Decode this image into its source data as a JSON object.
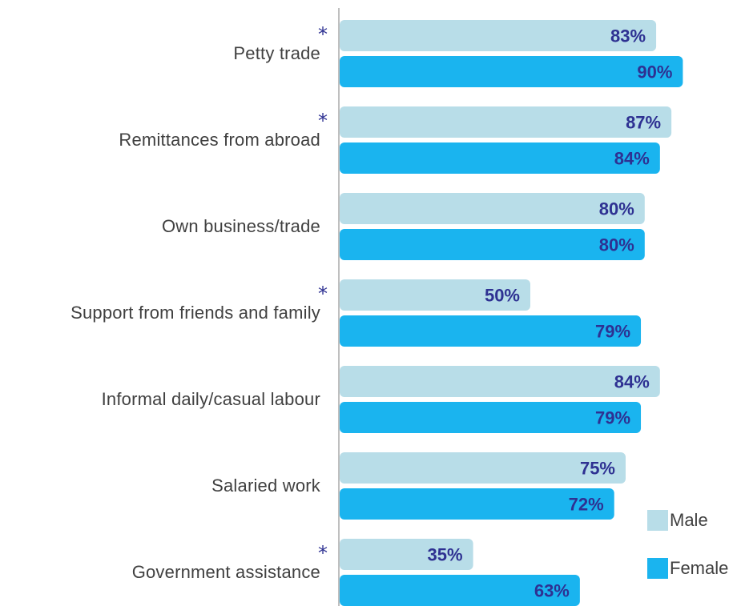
{
  "chart_data": {
    "type": "bar",
    "orientation": "horizontal",
    "categories": [
      "Petty trade",
      "Remittances from abroad",
      "Own business/trade",
      "Support from friends and family",
      "Informal daily/casual labour",
      "Salaried work",
      "Government assistance"
    ],
    "significant": [
      true,
      true,
      false,
      true,
      false,
      false,
      true
    ],
    "significance_marker": "*",
    "series": [
      {
        "name": "Male",
        "values": [
          83,
          87,
          80,
          50,
          84,
          75,
          35
        ],
        "color": "#b8dde8"
      },
      {
        "name": "Female",
        "values": [
          90,
          84,
          80,
          79,
          79,
          72,
          63
        ],
        "color": "#1ab4ef"
      }
    ],
    "value_suffix": "%",
    "label_color": "#2e3192",
    "xlim": [
      0,
      100
    ],
    "legend_position": "bottom-right",
    "grid": false
  }
}
